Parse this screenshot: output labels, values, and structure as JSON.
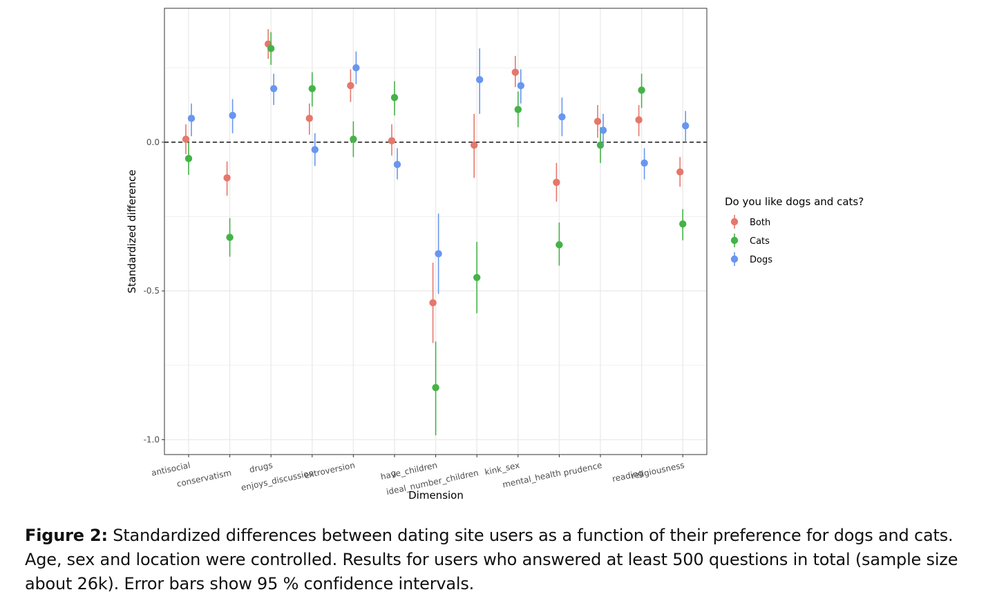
{
  "caption": {
    "label": "Figure 2:",
    "text": "Standardized differences between dating site users as a function of their preference for dogs and cats. Age, sex and location were controlled. Results for users who answered at least 500 questions in total (sample size about 26k). Error bars show 95 % confidence intervals."
  },
  "chart_data": {
    "type": "scatter",
    "xlabel": "Dimension",
    "ylabel": "Standardized difference",
    "ylim": [
      -1.05,
      0.45
    ],
    "yticks": [
      -1.0,
      -0.5,
      0.0
    ],
    "ytick_labels": [
      "-1.0",
      "-0.5",
      "0.0"
    ],
    "reference_line": 0,
    "grid": true,
    "legend": {
      "title": "Do you like dogs and cats?",
      "position": "right"
    },
    "categories": [
      "antisocial",
      "conservatism",
      "drugs",
      "enjoys_discussion",
      "extroversion",
      "g",
      "have_children",
      "ideal_number_children",
      "kink_sex",
      "mental_health",
      "prudence",
      "reading",
      "religiousness"
    ],
    "series": [
      {
        "name": "Both",
        "color": "#e5776c",
        "values": [
          0.01,
          -0.12,
          0.33,
          0.08,
          0.19,
          0.005,
          -0.54,
          -0.01,
          0.235,
          -0.135,
          0.07,
          0.075,
          -0.1
        ],
        "lower": [
          -0.04,
          -0.18,
          0.28,
          0.025,
          0.135,
          -0.045,
          -0.675,
          -0.12,
          0.185,
          -0.2,
          0.015,
          0.02,
          -0.15
        ],
        "upper": [
          0.06,
          -0.065,
          0.38,
          0.13,
          0.245,
          0.06,
          -0.405,
          0.095,
          0.29,
          -0.07,
          0.125,
          0.125,
          -0.05
        ]
      },
      {
        "name": "Cats",
        "color": "#44b347",
        "values": [
          -0.055,
          -0.32,
          0.315,
          0.18,
          0.01,
          0.15,
          -0.825,
          -0.455,
          0.11,
          -0.345,
          -0.01,
          0.175,
          -0.275
        ],
        "lower": [
          -0.11,
          -0.385,
          0.26,
          0.12,
          -0.05,
          0.09,
          -0.985,
          -0.575,
          0.05,
          -0.415,
          -0.07,
          0.115,
          -0.33
        ],
        "upper": [
          0.0,
          -0.255,
          0.37,
          0.235,
          0.07,
          0.205,
          -0.67,
          -0.335,
          0.17,
          -0.27,
          0.05,
          0.23,
          -0.225
        ]
      },
      {
        "name": "Dogs",
        "color": "#6896f0",
        "values": [
          0.08,
          0.09,
          0.18,
          -0.025,
          0.25,
          -0.075,
          -0.375,
          0.21,
          0.19,
          0.085,
          0.04,
          -0.07,
          0.055
        ],
        "lower": [
          0.02,
          0.03,
          0.125,
          -0.08,
          0.195,
          -0.125,
          -0.51,
          0.095,
          0.13,
          0.02,
          -0.015,
          -0.125,
          0.0
        ],
        "upper": [
          0.13,
          0.145,
          0.23,
          0.03,
          0.305,
          -0.02,
          -0.24,
          0.315,
          0.245,
          0.15,
          0.095,
          -0.02,
          0.105
        ]
      }
    ]
  }
}
